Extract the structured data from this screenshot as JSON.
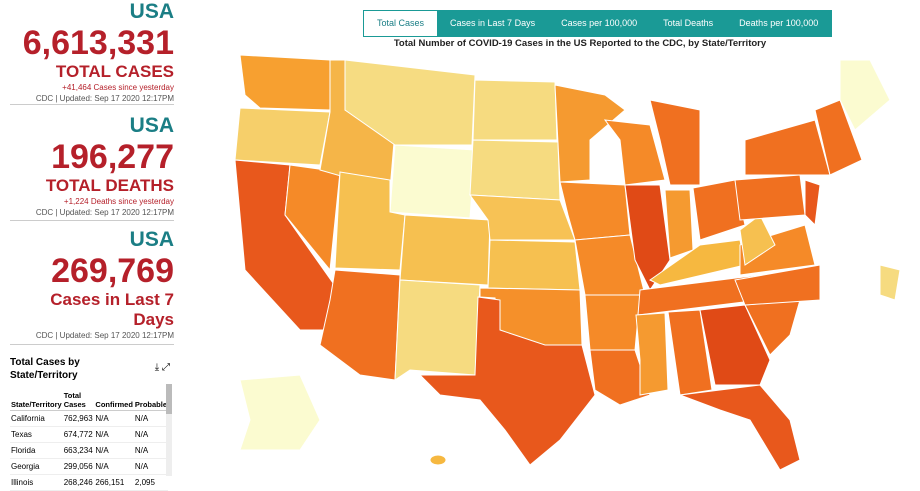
{
  "panels": [
    {
      "region": "USA",
      "value": "6,613,331",
      "label": "TOTAL CASES",
      "change": "+41,464 Cases since yesterday",
      "source": "CDC | Updated: Sep 17 2020 12:17PM"
    },
    {
      "region": "USA",
      "value": "196,277",
      "label": "TOTAL DEATHS",
      "change": "+1,224 Deaths since yesterday",
      "source": "CDC | Updated: Sep 17 2020 12:17PM"
    },
    {
      "region": "USA",
      "value": "269,769",
      "label": "Cases in Last 7 Days",
      "source": "CDC | Updated: Sep 17 2020 12:17PM"
    }
  ],
  "table": {
    "title": "Total Cases by State/Territory",
    "columns": [
      "State/Territory",
      "Total Cases",
      "Confirmed",
      "Probable"
    ],
    "rows": [
      [
        "California",
        "762,963",
        "N/A",
        "N/A"
      ],
      [
        "Texas",
        "674,772",
        "N/A",
        "N/A"
      ],
      [
        "Florida",
        "663,234",
        "N/A",
        "N/A"
      ],
      [
        "Georgia",
        "299,056",
        "N/A",
        "N/A"
      ],
      [
        "Illinois",
        "268,246",
        "266,151",
        "2,095"
      ]
    ]
  },
  "map": {
    "tabs": [
      "Total Cases",
      "Cases in Last 7 Days",
      "Cases per 100,000",
      "Total Deaths",
      "Deaths per 100,000"
    ],
    "title": "Total Number of COVID-19 Cases in the US Reported to the CDC, by State/Territory"
  }
}
